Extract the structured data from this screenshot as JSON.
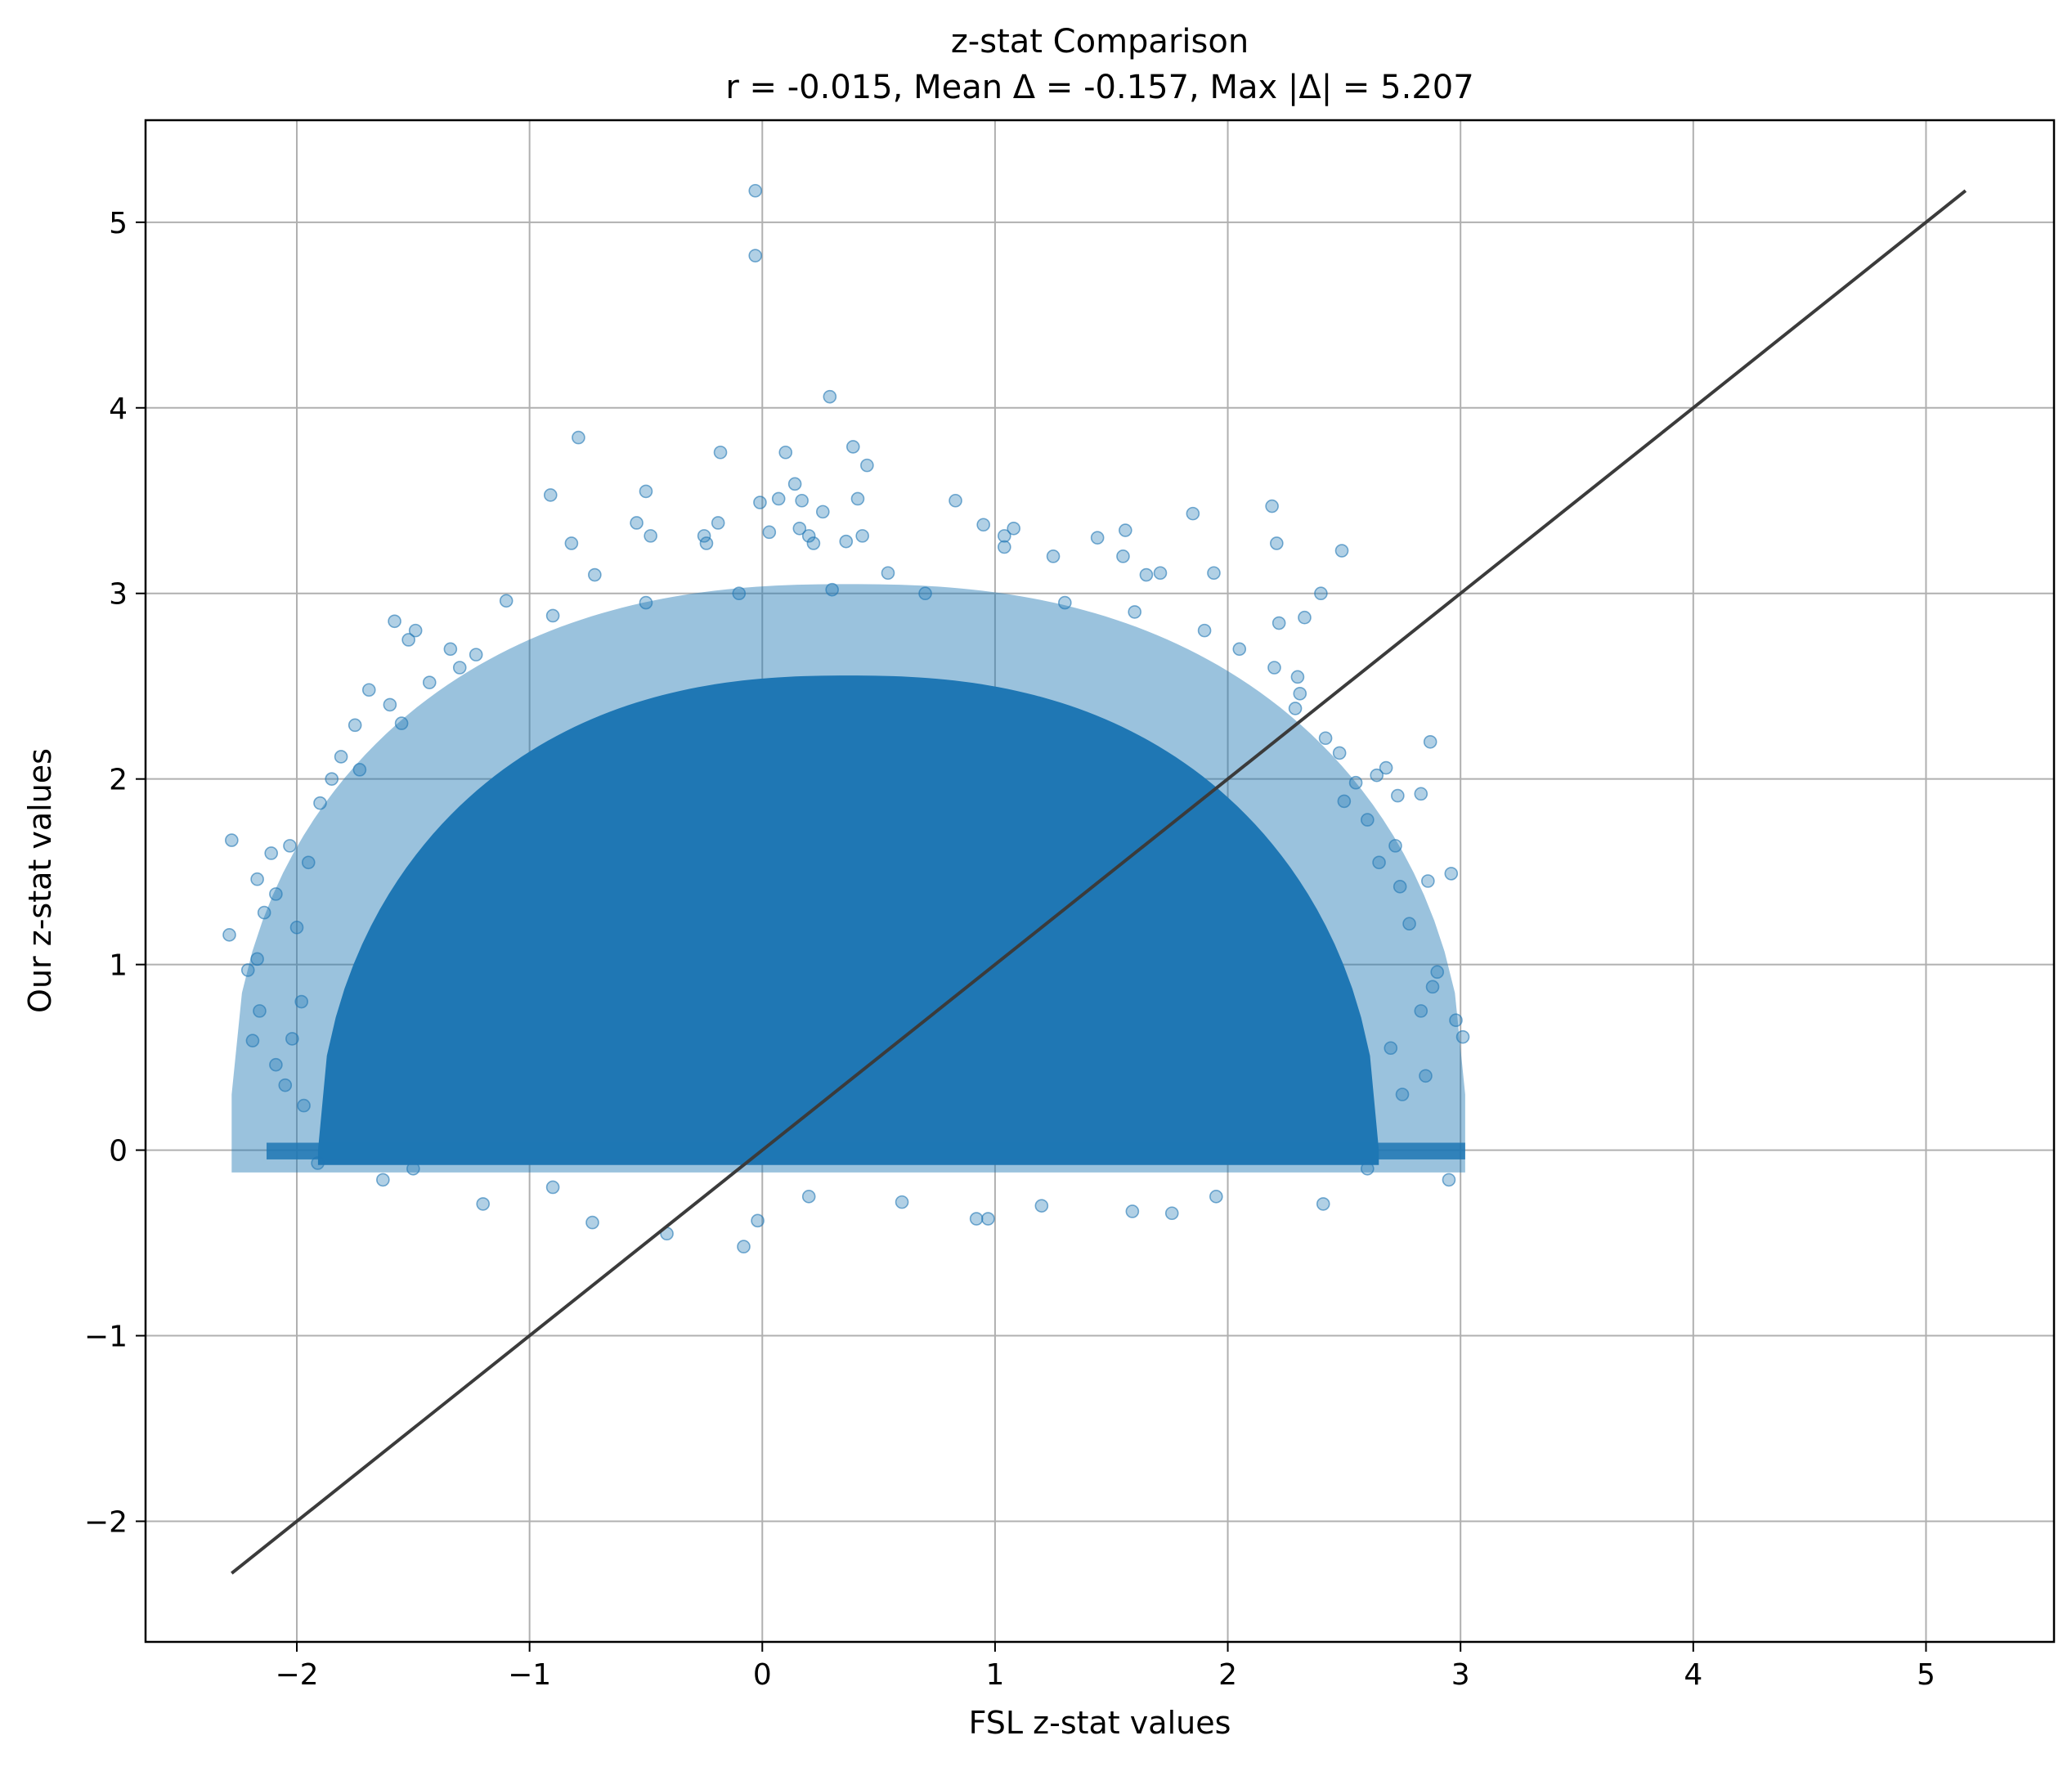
{
  "chart_data": {
    "type": "scatter",
    "title": "z-stat Comparison",
    "subtitle": "r = -0.015, Mean Δ = -0.157, Max |Δ| = 5.207",
    "xlabel": "FSL z-stat values",
    "ylabel": "Our z-stat values",
    "xlim": [
      -2.65,
      5.55
    ],
    "ylim": [
      -2.65,
      5.55
    ],
    "xticks": [
      -2,
      -1,
      0,
      1,
      2,
      3,
      4,
      5
    ],
    "yticks": [
      -2,
      -1,
      0,
      1,
      2,
      3,
      4,
      5
    ],
    "xtick_labels": [
      "−2",
      "−1",
      "0",
      "1",
      "2",
      "3",
      "4",
      "5"
    ],
    "ytick_labels": [
      "−2",
      "−1",
      "0",
      "1",
      "2",
      "3",
      "4",
      "5"
    ],
    "grid": true,
    "legend": "none",
    "point_color": "#1f77b4",
    "point_alpha": 0.35,
    "line_color": "#3b3b3b",
    "identity_line": {
      "x": [
        -2.28,
        5.17
      ],
      "y": [
        -2.28,
        5.17
      ]
    },
    "dense_region": {
      "description_values": "dense cloud of points",
      "x_range": [
        -2.28,
        3.02
      ],
      "y_range": [
        -0.3,
        3.0
      ]
    },
    "points": [
      [
        -0.03,
        5.17
      ],
      [
        -0.03,
        4.82
      ],
      [
        0.29,
        4.06
      ],
      [
        -0.79,
        3.84
      ],
      [
        0.39,
        3.79
      ],
      [
        0.1,
        3.76
      ],
      [
        -0.18,
        3.76
      ],
      [
        0.45,
        3.69
      ],
      [
        0.14,
        3.59
      ],
      [
        -0.5,
        3.55
      ],
      [
        -0.91,
        3.53
      ],
      [
        0.07,
        3.51
      ],
      [
        0.17,
        3.5
      ],
      [
        0.41,
        3.51
      ],
      [
        0.83,
        3.5
      ],
      [
        2.19,
        3.47
      ],
      [
        -0.01,
        3.49
      ],
      [
        0.26,
        3.44
      ],
      [
        1.85,
        3.43
      ],
      [
        -0.54,
        3.38
      ],
      [
        -0.19,
        3.38
      ],
      [
        0.16,
        3.35
      ],
      [
        1.08,
        3.35
      ],
      [
        0.95,
        3.37
      ],
      [
        1.56,
        3.34
      ],
      [
        -0.48,
        3.31
      ],
      [
        -0.25,
        3.31
      ],
      [
        0.03,
        3.33
      ],
      [
        0.2,
        3.31
      ],
      [
        0.43,
        3.31
      ],
      [
        1.04,
        3.31
      ],
      [
        1.44,
        3.3
      ],
      [
        -0.82,
        3.27
      ],
      [
        -0.24,
        3.27
      ],
      [
        0.22,
        3.27
      ],
      [
        0.36,
        3.28
      ],
      [
        2.21,
        3.27
      ],
      [
        2.49,
        3.23
      ],
      [
        1.04,
        3.25
      ],
      [
        1.25,
        3.2
      ],
      [
        1.55,
        3.2
      ],
      [
        1.71,
        3.11
      ],
      [
        1.94,
        3.11
      ],
      [
        -0.72,
        3.1
      ],
      [
        0.54,
        3.11
      ],
      [
        2.4,
        3.0
      ],
      [
        -1.1,
        2.96
      ],
      [
        -1.58,
        2.85
      ],
      [
        -1.49,
        2.8
      ],
      [
        -1.52,
        2.75
      ],
      [
        -1.34,
        2.7
      ],
      [
        -1.23,
        2.67
      ],
      [
        -1.69,
        2.48
      ],
      [
        -1.43,
        2.52
      ],
      [
        -1.6,
        2.4
      ],
      [
        -1.75,
        2.29
      ],
      [
        -1.81,
        2.12
      ],
      [
        -1.85,
        2.0
      ],
      [
        -1.73,
        2.05
      ],
      [
        -1.9,
        1.87
      ],
      [
        -2.03,
        1.64
      ],
      [
        -2.11,
        1.6
      ],
      [
        -2.17,
        1.46
      ],
      [
        -2.28,
        1.67
      ],
      [
        -2.09,
        1.38
      ],
      [
        -2.14,
        1.28
      ],
      [
        -2.29,
        1.16
      ],
      [
        -2.17,
        1.03
      ],
      [
        -2.21,
        0.97
      ],
      [
        -2.16,
        0.75
      ],
      [
        -2.19,
        0.59
      ],
      [
        -2.09,
        0.46
      ],
      [
        -2.05,
        0.35
      ],
      [
        -1.97,
        0.24
      ],
      [
        -1.91,
        -0.07
      ],
      [
        -1.63,
        -0.16
      ],
      [
        -1.2,
        -0.29
      ],
      [
        -0.41,
        -0.45
      ],
      [
        -0.08,
        -0.52
      ],
      [
        -0.02,
        -0.38
      ],
      [
        -0.73,
        -0.39
      ],
      [
        0.92,
        -0.37
      ],
      [
        0.97,
        -0.37
      ],
      [
        1.59,
        -0.33
      ],
      [
        1.76,
        -0.34
      ],
      [
        2.41,
        -0.29
      ],
      [
        2.95,
        -0.16
      ],
      [
        3.01,
        0.61
      ],
      [
        2.98,
        0.7
      ],
      [
        2.88,
        0.88
      ],
      [
        2.86,
        1.45
      ],
      [
        2.96,
        1.49
      ],
      [
        2.72,
        1.64
      ],
      [
        2.73,
        1.91
      ],
      [
        2.83,
        1.92
      ],
      [
        2.64,
        2.02
      ],
      [
        2.68,
        2.06
      ],
      [
        2.87,
        2.2
      ],
      [
        2.48,
        2.14
      ],
      [
        2.42,
        2.22
      ],
      [
        2.29,
        2.38
      ],
      [
        2.31,
        2.46
      ],
      [
        2.22,
        2.84
      ],
      [
        2.33,
        2.87
      ],
      [
        1.65,
        3.1
      ],
      [
        2.83,
        0.75
      ],
      [
        2.9,
        0.96
      ],
      [
        2.78,
        1.22
      ],
      [
        2.74,
        1.42
      ],
      [
        2.65,
        1.55
      ],
      [
        2.6,
        1.78
      ],
      [
        2.5,
        1.88
      ],
      [
        2.55,
        1.98
      ],
      [
        2.2,
        2.6
      ],
      [
        2.05,
        2.7
      ],
      [
        1.9,
        2.8
      ],
      [
        1.6,
        2.9
      ],
      [
        1.3,
        2.95
      ],
      [
        0.7,
        3.0
      ],
      [
        0.3,
        3.02
      ],
      [
        -0.1,
        3.0
      ],
      [
        -0.5,
        2.95
      ],
      [
        -0.9,
        2.88
      ],
      [
        -1.3,
        2.6
      ],
      [
        -1.55,
        2.3
      ],
      [
        -1.95,
        1.55
      ],
      [
        -2.0,
        1.2
      ],
      [
        -1.98,
        0.8
      ],
      [
        -2.02,
        0.6
      ],
      [
        -1.5,
        -0.1
      ],
      [
        -0.9,
        -0.2
      ],
      [
        0.2,
        -0.25
      ],
      [
        0.6,
        -0.28
      ],
      [
        1.2,
        -0.3
      ],
      [
        1.95,
        -0.25
      ],
      [
        2.6,
        -0.1
      ],
      [
        2.75,
        0.3
      ],
      [
        2.85,
        0.4
      ],
      [
        2.7,
        0.55
      ],
      [
        2.3,
        2.55
      ]
    ]
  }
}
